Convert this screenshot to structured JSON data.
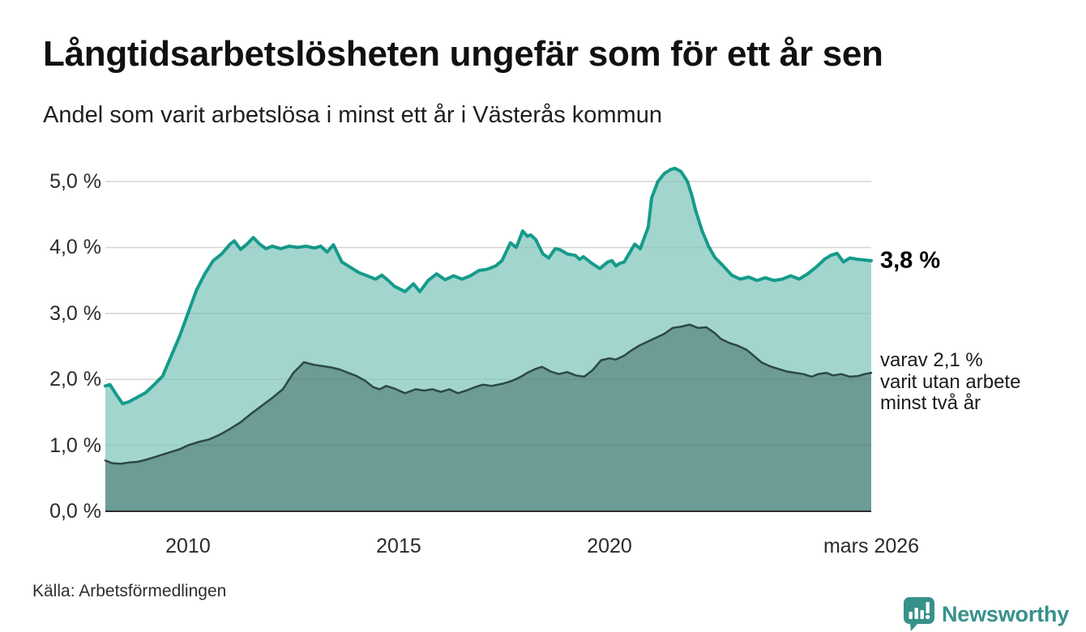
{
  "header": {
    "title": "Långtidsarbetslösheten ungefär som för ett år sen",
    "subtitle": "Andel som varit arbetslösa i minst ett år i Västerås kommun"
  },
  "colors": {
    "series1_line": "#159b8b",
    "series1_fill": "#a2d5ce",
    "series2_line": "#2d4945",
    "series2_fill": "#6d9b95",
    "grid": "#e3e3e3",
    "grid_overlay": "rgba(0,0,0,0.055)",
    "baseline": "#2b2b2b",
    "brand_teal": "#37918a"
  },
  "chart_data": {
    "type": "area",
    "title": "Långtidsarbetslösheten ungefär som för ett år sen",
    "subtitle": "Andel som varit arbetslösa i minst ett år i Västerås kommun",
    "unit": "%",
    "grid": true,
    "legend_position": "right-annotations",
    "x_axis": {
      "range": [
        2008.04,
        2026.21
      ],
      "ticks": [
        {
          "label": "2010",
          "year": 2010
        },
        {
          "label": "2015",
          "year": 2015
        },
        {
          "label": "2020",
          "year": 2020
        },
        {
          "label": "mars 2026",
          "year": 2026.21
        }
      ]
    },
    "y_axis": {
      "range": [
        0,
        5.3
      ],
      "ticks": [
        {
          "label": "5,0 %",
          "value": 5
        },
        {
          "label": "4,0 %",
          "value": 4
        },
        {
          "label": "3,0 %",
          "value": 3
        },
        {
          "label": "2,0 %",
          "value": 2
        },
        {
          "label": "1,0 %",
          "value": 1
        },
        {
          "label": "0,0 %",
          "value": 0
        }
      ]
    },
    "series": [
      {
        "name": "Andel som varit arbetslösa minst ett år",
        "latest_label": "3,8 %",
        "values": [
          [
            2008.04,
            1.9
          ],
          [
            2008.15,
            1.92
          ],
          [
            2008.3,
            1.77
          ],
          [
            2008.45,
            1.63
          ],
          [
            2008.6,
            1.66
          ],
          [
            2008.8,
            1.73
          ],
          [
            2009.0,
            1.8
          ],
          [
            2009.2,
            1.92
          ],
          [
            2009.4,
            2.05
          ],
          [
            2009.6,
            2.35
          ],
          [
            2009.8,
            2.65
          ],
          [
            2010.0,
            3.0
          ],
          [
            2010.2,
            3.35
          ],
          [
            2010.4,
            3.6
          ],
          [
            2010.6,
            3.8
          ],
          [
            2010.8,
            3.9
          ],
          [
            2011.0,
            4.05
          ],
          [
            2011.1,
            4.1
          ],
          [
            2011.25,
            3.97
          ],
          [
            2011.4,
            4.05
          ],
          [
            2011.55,
            4.15
          ],
          [
            2011.7,
            4.05
          ],
          [
            2011.85,
            3.98
          ],
          [
            2012.0,
            4.02
          ],
          [
            2012.2,
            3.98
          ],
          [
            2012.4,
            4.02
          ],
          [
            2012.6,
            4.0
          ],
          [
            2012.8,
            4.02
          ],
          [
            2013.0,
            3.99
          ],
          [
            2013.15,
            4.02
          ],
          [
            2013.3,
            3.93
          ],
          [
            2013.45,
            4.04
          ],
          [
            2013.65,
            3.78
          ],
          [
            2013.85,
            3.7
          ],
          [
            2014.05,
            3.62
          ],
          [
            2014.25,
            3.57
          ],
          [
            2014.45,
            3.52
          ],
          [
            2014.6,
            3.58
          ],
          [
            2014.75,
            3.5
          ],
          [
            2014.9,
            3.41
          ],
          [
            2015.15,
            3.33
          ],
          [
            2015.35,
            3.45
          ],
          [
            2015.5,
            3.33
          ],
          [
            2015.7,
            3.5
          ],
          [
            2015.9,
            3.6
          ],
          [
            2016.1,
            3.51
          ],
          [
            2016.3,
            3.57
          ],
          [
            2016.5,
            3.52
          ],
          [
            2016.7,
            3.57
          ],
          [
            2016.9,
            3.65
          ],
          [
            2017.1,
            3.67
          ],
          [
            2017.3,
            3.72
          ],
          [
            2017.45,
            3.8
          ],
          [
            2017.65,
            4.07
          ],
          [
            2017.79,
            4.0
          ],
          [
            2017.94,
            4.25
          ],
          [
            2018.05,
            4.17
          ],
          [
            2018.13,
            4.19
          ],
          [
            2018.25,
            4.12
          ],
          [
            2018.42,
            3.9
          ],
          [
            2018.56,
            3.84
          ],
          [
            2018.71,
            3.98
          ],
          [
            2018.81,
            3.97
          ],
          [
            2018.9,
            3.94
          ],
          [
            2019.0,
            3.9
          ],
          [
            2019.19,
            3.88
          ],
          [
            2019.29,
            3.82
          ],
          [
            2019.38,
            3.86
          ],
          [
            2019.58,
            3.76
          ],
          [
            2019.77,
            3.68
          ],
          [
            2019.96,
            3.78
          ],
          [
            2020.06,
            3.8
          ],
          [
            2020.15,
            3.72
          ],
          [
            2020.25,
            3.76
          ],
          [
            2020.35,
            3.78
          ],
          [
            2020.6,
            4.05
          ],
          [
            2020.73,
            3.98
          ],
          [
            2020.92,
            4.31
          ],
          [
            2021.0,
            4.75
          ],
          [
            2021.15,
            5.0
          ],
          [
            2021.3,
            5.12
          ],
          [
            2021.45,
            5.18
          ],
          [
            2021.55,
            5.2
          ],
          [
            2021.7,
            5.15
          ],
          [
            2021.85,
            5.0
          ],
          [
            2021.95,
            4.8
          ],
          [
            2022.05,
            4.55
          ],
          [
            2022.2,
            4.25
          ],
          [
            2022.35,
            4.02
          ],
          [
            2022.5,
            3.85
          ],
          [
            2022.7,
            3.72
          ],
          [
            2022.9,
            3.58
          ],
          [
            2023.1,
            3.52
          ],
          [
            2023.3,
            3.55
          ],
          [
            2023.5,
            3.5
          ],
          [
            2023.7,
            3.54
          ],
          [
            2023.9,
            3.5
          ],
          [
            2024.1,
            3.52
          ],
          [
            2024.3,
            3.57
          ],
          [
            2024.5,
            3.52
          ],
          [
            2024.7,
            3.6
          ],
          [
            2024.9,
            3.7
          ],
          [
            2025.1,
            3.82
          ],
          [
            2025.25,
            3.88
          ],
          [
            2025.4,
            3.91
          ],
          [
            2025.55,
            3.78
          ],
          [
            2025.7,
            3.84
          ],
          [
            2025.9,
            3.82
          ],
          [
            2026.05,
            3.81
          ],
          [
            2026.21,
            3.8
          ]
        ]
      },
      {
        "name": "varav arbetslösa minst två år",
        "latest_label": "2,1 %",
        "values": [
          [
            2008.04,
            0.77
          ],
          [
            2008.2,
            0.73
          ],
          [
            2008.4,
            0.72
          ],
          [
            2008.6,
            0.74
          ],
          [
            2008.8,
            0.75
          ],
          [
            2009.0,
            0.78
          ],
          [
            2009.2,
            0.82
          ],
          [
            2009.4,
            0.86
          ],
          [
            2009.6,
            0.9
          ],
          [
            2009.8,
            0.94
          ],
          [
            2010.0,
            1.0
          ],
          [
            2010.25,
            1.05
          ],
          [
            2010.5,
            1.09
          ],
          [
            2010.75,
            1.16
          ],
          [
            2011.0,
            1.25
          ],
          [
            2011.25,
            1.35
          ],
          [
            2011.5,
            1.48
          ],
          [
            2011.75,
            1.6
          ],
          [
            2012.0,
            1.72
          ],
          [
            2012.25,
            1.85
          ],
          [
            2012.5,
            2.1
          ],
          [
            2012.75,
            2.26
          ],
          [
            2013.0,
            2.22
          ],
          [
            2013.2,
            2.2
          ],
          [
            2013.4,
            2.18
          ],
          [
            2013.6,
            2.15
          ],
          [
            2013.8,
            2.1
          ],
          [
            2014.0,
            2.05
          ],
          [
            2014.2,
            1.98
          ],
          [
            2014.4,
            1.88
          ],
          [
            2014.55,
            1.85
          ],
          [
            2014.7,
            1.9
          ],
          [
            2014.9,
            1.86
          ],
          [
            2015.15,
            1.79
          ],
          [
            2015.4,
            1.85
          ],
          [
            2015.6,
            1.83
          ],
          [
            2015.8,
            1.85
          ],
          [
            2016.0,
            1.81
          ],
          [
            2016.2,
            1.85
          ],
          [
            2016.4,
            1.79
          ],
          [
            2016.6,
            1.83
          ],
          [
            2016.8,
            1.88
          ],
          [
            2017.0,
            1.92
          ],
          [
            2017.2,
            1.9
          ],
          [
            2017.5,
            1.94
          ],
          [
            2017.7,
            1.98
          ],
          [
            2017.9,
            2.04
          ],
          [
            2018.05,
            2.1
          ],
          [
            2018.25,
            2.16
          ],
          [
            2018.4,
            2.19
          ],
          [
            2018.6,
            2.12
          ],
          [
            2018.8,
            2.08
          ],
          [
            2019.0,
            2.11
          ],
          [
            2019.2,
            2.06
          ],
          [
            2019.4,
            2.04
          ],
          [
            2019.6,
            2.14
          ],
          [
            2019.8,
            2.29
          ],
          [
            2020.0,
            2.32
          ],
          [
            2020.15,
            2.3
          ],
          [
            2020.35,
            2.36
          ],
          [
            2020.5,
            2.43
          ],
          [
            2020.7,
            2.51
          ],
          [
            2020.9,
            2.57
          ],
          [
            2021.1,
            2.63
          ],
          [
            2021.3,
            2.69
          ],
          [
            2021.5,
            2.78
          ],
          [
            2021.7,
            2.8
          ],
          [
            2021.9,
            2.83
          ],
          [
            2022.1,
            2.78
          ],
          [
            2022.3,
            2.79
          ],
          [
            2022.5,
            2.7
          ],
          [
            2022.65,
            2.61
          ],
          [
            2022.85,
            2.55
          ],
          [
            2023.05,
            2.51
          ],
          [
            2023.25,
            2.45
          ],
          [
            2023.4,
            2.37
          ],
          [
            2023.6,
            2.26
          ],
          [
            2023.8,
            2.2
          ],
          [
            2024.0,
            2.16
          ],
          [
            2024.2,
            2.12
          ],
          [
            2024.4,
            2.1
          ],
          [
            2024.6,
            2.08
          ],
          [
            2024.8,
            2.04
          ],
          [
            2024.95,
            2.08
          ],
          [
            2025.15,
            2.1
          ],
          [
            2025.3,
            2.06
          ],
          [
            2025.5,
            2.08
          ],
          [
            2025.7,
            2.04
          ],
          [
            2025.9,
            2.05
          ],
          [
            2026.05,
            2.08
          ],
          [
            2026.21,
            2.1
          ]
        ]
      }
    ],
    "annotations": [
      {
        "text": "3,8 %",
        "bold": true,
        "attaches_to": "series 1 end"
      },
      {
        "lines": [
          "varav 2,1 %",
          "varit utan arbete",
          "minst två år"
        ],
        "attaches_to": "series 2 end"
      }
    ]
  },
  "footer": {
    "source": "Källa: Arbetsförmedlingen",
    "brand": "Newsworthy"
  }
}
